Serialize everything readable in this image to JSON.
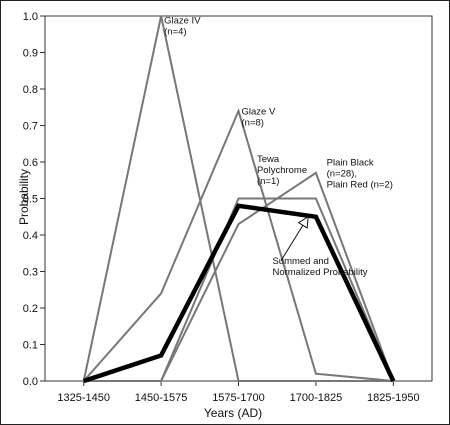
{
  "chart_data": {
    "type": "line",
    "categories": [
      "1325-1450",
      "1450-1575",
      "1575-1700",
      "1700-1825",
      "1825-1950"
    ],
    "ylim": [
      0,
      1.0
    ],
    "yticks": [
      "0.0",
      "0.1",
      "0.2",
      "0.3",
      "0.4",
      "0.5",
      "0.6",
      "0.7",
      "0.8",
      "0.9",
      "1.0"
    ],
    "xlabel": "Years (AD)",
    "ylabel": "Probability",
    "grid": false,
    "series": [
      {
        "name": "Glaze IV",
        "color": "#777777",
        "values": [
          0.0,
          1.0,
          0.0,
          0.0,
          0.0
        ]
      },
      {
        "name": "Glaze V",
        "color": "#777777",
        "values": [
          0.0,
          0.24,
          0.74,
          0.02,
          0.0
        ]
      },
      {
        "name": "Tewa Polychrome",
        "color": "#777777",
        "values": [
          0.0,
          0.0,
          0.5,
          0.5,
          0.0
        ]
      },
      {
        "name": "Plain Black, Plain Red",
        "color": "#777777",
        "values": [
          0.0,
          0.0,
          0.43,
          0.57,
          0.0
        ]
      },
      {
        "name": "Summed and Normalized Probability",
        "color": "#000000",
        "emphasis": true,
        "values": [
          0.0,
          0.07,
          0.48,
          0.45,
          0.0
        ]
      }
    ],
    "annotations": [
      {
        "lines": [
          "Glaze IV",
          "(n=4)"
        ],
        "at_x": 1,
        "at_y": 0.98
      },
      {
        "lines": [
          "Glaze V",
          "(n=8)"
        ],
        "at_x": 2,
        "at_y": 0.73
      },
      {
        "lines": [
          "Tewa",
          "Polychrome",
          "(n=1)"
        ],
        "at_x": 2.2,
        "at_y": 0.6
      },
      {
        "lines": [
          "Plain Black",
          "(n=28),",
          "Plain Red (n=2)"
        ],
        "at_x": 3.1,
        "at_y": 0.59
      },
      {
        "lines": [
          "Summed and",
          "Normalized Probability"
        ],
        "at_x": 2.4,
        "at_y": 0.32
      }
    ]
  }
}
